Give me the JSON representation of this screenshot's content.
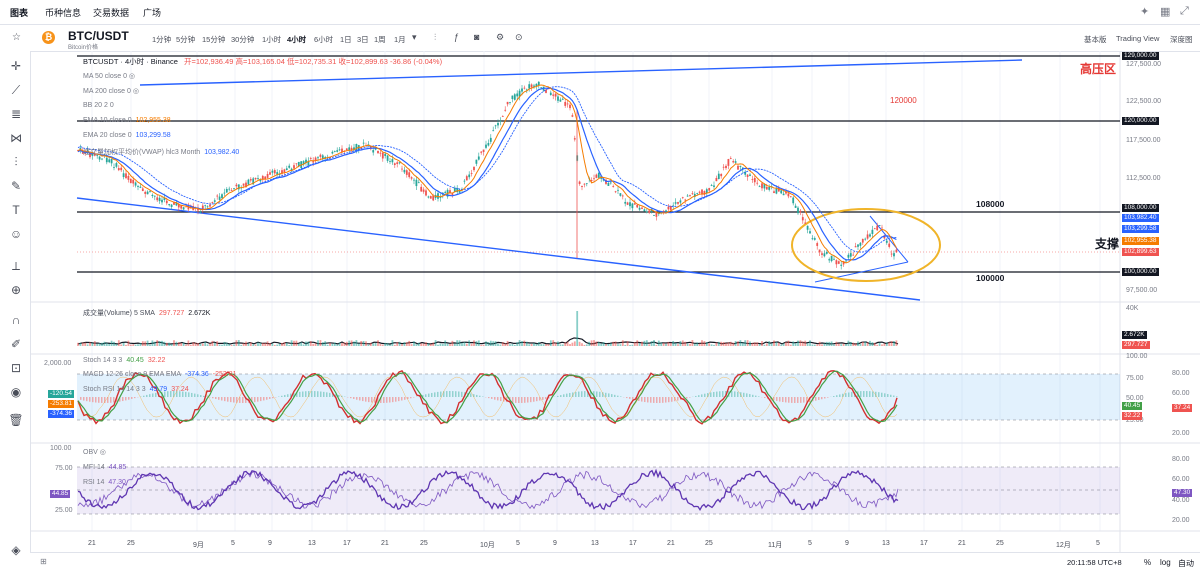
{
  "nav": {
    "tabs": [
      "图表",
      "币种信息",
      "交易数据",
      "广场"
    ]
  },
  "symbol": {
    "name": "BTC/USDT",
    "sub": "Bitcoin价格"
  },
  "intervals": [
    "1分钟",
    "5分钟",
    "15分钟",
    "30分钟",
    "1小时",
    "4小时",
    "6小时",
    "1日",
    "3日",
    "1周",
    "1月"
  ],
  "active_interval": "4小时",
  "right_tools": [
    "基本版",
    "Trading View",
    "深度图"
  ],
  "legend": {
    "main": "BTCUSDT · 4小时 · Binance",
    "ohlc": "开=102,936.49 高=103,165.04 低=102,735.31 收=102,899.63 -36.86 (-0.04%)",
    "ma50": "MA 50 close 0",
    "ma200": "MA 200 close 0",
    "bb": "BB 20 2 0",
    "ema10": "EMA 10 close 0",
    "ema10_val": "102,955.38",
    "ema20": "EMA 20 close 0",
    "ema20_val": "103,299.58",
    "vwap": "成交量加权平均价(VWAP) hlc3 Month",
    "vwap_val": "103,982.40",
    "volume": "成交量(Volume) 5 SMA",
    "volume_v1": "297.727",
    "volume_v2": "2.672K",
    "stoch": "Stoch 14 3 3",
    "stoch_v1": "40.45",
    "stoch_v2": "32.22",
    "macd": "MACD 12 26 close 9 EMA EMA",
    "macd_v1": "-374.36",
    "macd_v2": "-253.81",
    "stochrsi": "Stoch RSI 14 14 3 3",
    "stochrsi_v1": "49.79",
    "stochrsi_v2": "37.24",
    "obv": "OBV",
    "mfi": "MFI 14",
    "mfi_v": "44.85",
    "rsi": "RSI 14",
    "rsi_v": "47.30"
  },
  "annotations": {
    "high_pressure": "高压区",
    "level_120000": "120000",
    "level_108000": "108000",
    "level_100000": "100000",
    "support": "支撑"
  },
  "price_axis": [
    "127,500.00",
    "122,500.00",
    "117,500.00",
    "112,500.00",
    "97,500.00"
  ],
  "price_boxes": [
    {
      "text": "129,000.00",
      "color": "#131722"
    },
    {
      "text": "120,000.00",
      "color": "#131722"
    },
    {
      "text": "108,000.00",
      "color": "#131722"
    },
    {
      "text": "103,982.40",
      "color": "#2962ff"
    },
    {
      "text": "103,299.58",
      "color": "#2962ff"
    },
    {
      "text": "102,955.38",
      "color": "#f57c00"
    },
    {
      "text": "102,899.63",
      "color": "#ef5350"
    },
    {
      "text": "100,000.00",
      "color": "#131722"
    }
  ],
  "volume_axis": {
    "top": "40K",
    "box1": "2.672K",
    "box2": "297.727"
  },
  "osc_axis": [
    "100.00",
    "75.00",
    "50.00",
    "25.00"
  ],
  "osc_right_axis": [
    "80.00",
    "60.00",
    "20.00"
  ],
  "osc_boxes_right": [
    "40.45",
    "32.22",
    "37.24"
  ],
  "osc_left_axis": "2,000.00",
  "osc_boxes_left": [
    "-120.54",
    "-253.81",
    "-374.36"
  ],
  "rsi_axis": [
    "100.00",
    "75.00",
    "50.00",
    "25.00"
  ],
  "rsi_right_axis": [
    "80.00",
    "60.00",
    "40.00",
    "20.00"
  ],
  "rsi_box_right": "47.30",
  "rsi_box_left": "44.85",
  "x_ticks": [
    "21",
    "25",
    "9月",
    "5",
    "9",
    "13",
    "17",
    "21",
    "25",
    "10月",
    "5",
    "9",
    "13",
    "17",
    "21",
    "25",
    "11月",
    "5",
    "9",
    "13",
    "17",
    "21",
    "25",
    "12月",
    "5"
  ],
  "bottom": {
    "time": "20:11:58 UTC+8",
    "pct": "%",
    "log": "log",
    "auto": "自动"
  },
  "colors": {
    "up": "#26a69a",
    "down": "#ef5350",
    "trend": "#2962ff",
    "ema10": "#f57c00",
    "ellipse": "#f0b429",
    "annot_red": "#e53935"
  }
}
